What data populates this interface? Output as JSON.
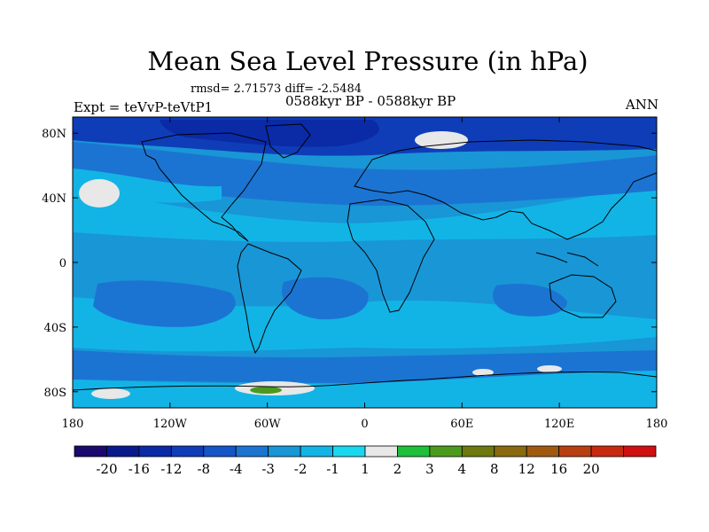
{
  "title": "Mean Sea Level Pressure (in hPa)",
  "stats": "rmsd= 2.71573 diff= -2.5484",
  "subtitle": "0588kyr BP - 0588kyr BP",
  "left_label": "Expt = teVvP-teVtP1",
  "right_label": "ANN",
  "lat_ticks": [
    {
      "label": "80N",
      "value": 80
    },
    {
      "label": "40N",
      "value": 40
    },
    {
      "label": "0",
      "value": 0
    },
    {
      "label": "40S",
      "value": -40
    },
    {
      "label": "80S",
      "value": -80
    }
  ],
  "lon_ticks": [
    {
      "label": "180",
      "value": -180
    },
    {
      "label": "120W",
      "value": -120
    },
    {
      "label": "60W",
      "value": -60
    },
    {
      "label": "0",
      "value": 0
    },
    {
      "label": "60E",
      "value": 60
    },
    {
      "label": "120E",
      "value": 120
    },
    {
      "label": "180",
      "value": 180
    }
  ],
  "colorbar": {
    "colors": [
      "#1a0a6e",
      "#0a1a8c",
      "#0a2aa6",
      "#0f3db8",
      "#1455c8",
      "#1b74d2",
      "#1996d6",
      "#12b4e6",
      "#19d7ee",
      "#e8e8e8",
      "#1fbf3a",
      "#4b9a1e",
      "#6e7a10",
      "#8a6a10",
      "#a05a10",
      "#b84010",
      "#c82a10",
      "#d01010"
    ],
    "labels": [
      "-20",
      "-16",
      "-12",
      "-8",
      "-4",
      "-3",
      "-2",
      "-1",
      "1",
      "2",
      "3",
      "4",
      "8",
      "12",
      "16",
      "20"
    ]
  }
}
